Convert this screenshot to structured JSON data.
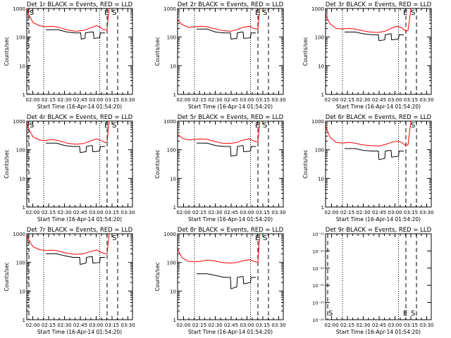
{
  "figure": {
    "x_axis_label": "Start Time (16-Apr-14 01:54:20)",
    "y_axis_label": "Counts/sec",
    "x_tick_labels": [
      "02:00",
      "02:15",
      "02:30",
      "02:45",
      "03:00",
      "03:15",
      "03:30"
    ],
    "y_tick_labels_linear": [
      "1",
      "10",
      "100",
      "1000"
    ],
    "marker_labels": {
      "E": "E",
      "S": "S"
    },
    "colors": {
      "events": "#000000",
      "lld": "#ff0000",
      "axes": "#000000",
      "background": "#ffffff"
    }
  },
  "chart_data": [
    {
      "type": "line",
      "title": "Det 1r BLACK = Events, RED = LLD",
      "xlabel": "Start Time (16-Apr-14 01:54:20)",
      "ylabel": "Counts/sec",
      "x_unit": "minutes after 01:54:20",
      "xlim": [
        0,
        100
      ],
      "ylim": [
        1,
        1000
      ],
      "y_scale": "log",
      "grid": false,
      "legend": "none",
      "dashed_lines_x": [
        2,
        76,
        86
      ],
      "dotted_lines_x": [
        16,
        69
      ],
      "markers": [
        {
          "label": "S",
          "x": 2
        },
        {
          "label": "E",
          "x": 76
        },
        {
          "label": "S",
          "x": 80
        }
      ],
      "series": [
        {
          "name": "RED = LLD",
          "color": "#ff0000",
          "x": [
            0,
            2,
            6,
            12,
            18,
            24,
            30,
            38,
            46,
            54,
            60,
            66,
            70,
            72,
            74,
            76,
            77,
            78,
            79
          ],
          "y": [
            1000,
            600,
            320,
            250,
            230,
            240,
            220,
            180,
            160,
            170,
            210,
            250,
            220,
            180,
            180,
            180,
            500,
            1000,
            1000
          ]
        },
        {
          "name": "BLACK = Events",
          "color": "#000000",
          "x": [
            18,
            30,
            38,
            46,
            51,
            51.5,
            55,
            55.5,
            60,
            63,
            63.5,
            69,
            69.5,
            74
          ],
          "y": [
            180,
            180,
            150,
            140,
            140,
            85,
            90,
            140,
            150,
            150,
            90,
            95,
            140,
            140
          ]
        }
      ]
    },
    {
      "type": "line",
      "title": "Det 2r BLACK = Events, RED = LLD",
      "xlabel": "Start Time (16-Apr-14 01:54:20)",
      "ylabel": "Counts/sec",
      "x_unit": "minutes after 01:54:20",
      "xlim": [
        0,
        100
      ],
      "ylim": [
        1,
        1000
      ],
      "y_scale": "log",
      "grid": false,
      "legend": "none",
      "dashed_lines_x": [
        76,
        86
      ],
      "dotted_lines_x": [
        16,
        69
      ],
      "markers": [
        {
          "label": "E",
          "x": 76
        },
        {
          "label": "S",
          "x": 80
        }
      ],
      "series": [
        {
          "name": "RED = LLD",
          "color": "#ff0000",
          "x": [
            0,
            4,
            10,
            16,
            22,
            28,
            34,
            42,
            50,
            56,
            62,
            68,
            72,
            76,
            77,
            78,
            79
          ],
          "y": [
            400,
            280,
            220,
            230,
            240,
            230,
            200,
            170,
            160,
            180,
            220,
            240,
            200,
            190,
            500,
            1000,
            1000
          ]
        },
        {
          "name": "BLACK = Events",
          "color": "#000000",
          "x": [
            18,
            28,
            36,
            44,
            50,
            50.5,
            56,
            56.5,
            61,
            62,
            62.5,
            69,
            69.5,
            74
          ],
          "y": [
            190,
            190,
            150,
            140,
            140,
            85,
            90,
            140,
            150,
            150,
            90,
            95,
            140,
            140
          ]
        }
      ]
    },
    {
      "type": "line",
      "title": "Det 3r BLACK = Events, RED = LLD",
      "xlabel": "Start Time (16-Apr-14 01:54:20)",
      "ylabel": "Counts/sec",
      "x_unit": "minutes after 01:54:20",
      "xlim": [
        0,
        100
      ],
      "ylim": [
        1,
        1000
      ],
      "y_scale": "log",
      "grid": false,
      "legend": "none",
      "dashed_lines_x": [
        76,
        86
      ],
      "dotted_lines_x": [
        16,
        69
      ],
      "markers": [
        {
          "label": "E",
          "x": 76
        },
        {
          "label": "S",
          "x": 80
        }
      ],
      "series": [
        {
          "name": "RED = LLD",
          "color": "#ff0000",
          "x": [
            0,
            4,
            10,
            16,
            22,
            28,
            34,
            42,
            50,
            56,
            62,
            68,
            72,
            76,
            78,
            80,
            81
          ],
          "y": [
            600,
            300,
            200,
            190,
            200,
            190,
            170,
            150,
            145,
            160,
            200,
            240,
            210,
            160,
            170,
            600,
            1000
          ]
        },
        {
          "name": "BLACK = Events",
          "color": "#000000",
          "x": [
            18,
            28,
            36,
            44,
            50,
            50.5,
            56,
            56.5,
            61,
            62,
            62.5,
            69,
            69.5,
            74
          ],
          "y": [
            150,
            150,
            130,
            120,
            120,
            75,
            80,
            120,
            130,
            130,
            80,
            85,
            120,
            120
          ]
        }
      ]
    },
    {
      "type": "line",
      "title": "Det 4r BLACK = Events, RED = LLD",
      "xlabel": "Start Time (16-Apr-14 01:54:20)",
      "ylabel": "Counts/sec",
      "x_unit": "minutes after 01:54:20",
      "xlim": [
        0,
        100
      ],
      "ylim": [
        1,
        1000
      ],
      "y_scale": "log",
      "grid": false,
      "legend": "none",
      "dashed_lines_x": [
        2,
        76,
        86
      ],
      "dotted_lines_x": [
        16,
        69
      ],
      "markers": [
        {
          "label": "S",
          "x": 2
        },
        {
          "label": "E",
          "x": 76
        },
        {
          "label": "S",
          "x": 80
        }
      ],
      "series": [
        {
          "name": "RED = LLD",
          "color": "#ff0000",
          "x": [
            0,
            2,
            6,
            12,
            18,
            24,
            30,
            38,
            46,
            54,
            60,
            66,
            70,
            74,
            76,
            77,
            78,
            79
          ],
          "y": [
            900,
            500,
            280,
            220,
            210,
            230,
            210,
            170,
            155,
            165,
            200,
            240,
            210,
            180,
            180,
            500,
            1000,
            1000
          ]
        },
        {
          "name": "BLACK = Events",
          "color": "#000000",
          "x": [
            18,
            28,
            36,
            44,
            50,
            50.5,
            56,
            56.5,
            61,
            62,
            62.5,
            69,
            69.5,
            74
          ],
          "y": [
            170,
            170,
            140,
            130,
            130,
            80,
            85,
            130,
            140,
            140,
            85,
            90,
            130,
            130
          ]
        }
      ]
    },
    {
      "type": "line",
      "title": "Det 5r BLACK = Events, RED = LLD",
      "xlabel": "Start Time (16-Apr-14 01:54:20)",
      "ylabel": "Counts/sec",
      "x_unit": "minutes after 01:54:20",
      "xlim": [
        0,
        100
      ],
      "ylim": [
        1,
        1000
      ],
      "y_scale": "log",
      "grid": false,
      "legend": "none",
      "dashed_lines_x": [
        76,
        86
      ],
      "dotted_lines_x": [
        16,
        69
      ],
      "markers": [
        {
          "label": "E",
          "x": 76
        },
        {
          "label": "S",
          "x": 80
        }
      ],
      "series": [
        {
          "name": "RED = LLD",
          "color": "#ff0000",
          "x": [
            0,
            4,
            10,
            16,
            22,
            28,
            34,
            42,
            50,
            56,
            62,
            68,
            72,
            76,
            77,
            78,
            79
          ],
          "y": [
            350,
            260,
            220,
            230,
            240,
            230,
            200,
            170,
            165,
            180,
            220,
            240,
            200,
            190,
            500,
            1000,
            1000
          ]
        },
        {
          "name": "BLACK = Events",
          "color": "#000000",
          "x": [
            18,
            28,
            36,
            44,
            50,
            50.5,
            56,
            56.5,
            61,
            62,
            62.5,
            69,
            69.5,
            74
          ],
          "y": [
            170,
            170,
            140,
            130,
            130,
            60,
            65,
            130,
            140,
            140,
            85,
            90,
            130,
            130
          ]
        }
      ]
    },
    {
      "type": "line",
      "title": "Det 6r BLACK = Events, RED = LLD",
      "xlabel": "Start Time (16-Apr-14 01:54:20)",
      "ylabel": "Counts/sec",
      "x_unit": "minutes after 01:54:20",
      "xlim": [
        0,
        100
      ],
      "ylim": [
        1,
        1000
      ],
      "y_scale": "log",
      "grid": false,
      "legend": "none",
      "dashed_lines_x": [
        76,
        86
      ],
      "dotted_lines_x": [
        16,
        69
      ],
      "markers": [
        {
          "label": "S",
          "x": 80
        }
      ],
      "series": [
        {
          "name": "RED = LLD",
          "color": "#ff0000",
          "x": [
            0,
            4,
            10,
            16,
            22,
            28,
            34,
            42,
            50,
            56,
            62,
            68,
            72,
            76,
            78,
            80,
            81
          ],
          "y": [
            700,
            280,
            180,
            170,
            180,
            170,
            150,
            140,
            135,
            150,
            180,
            200,
            180,
            140,
            150,
            600,
            1000
          ]
        },
        {
          "name": "BLACK = Events",
          "color": "#000000",
          "x": [
            18,
            28,
            36,
            44,
            50,
            50.5,
            56,
            56.5,
            61,
            62,
            62.5,
            69,
            69.5,
            74
          ],
          "y": [
            110,
            110,
            95,
            90,
            90,
            45,
            50,
            90,
            95,
            95,
            55,
            60,
            90,
            90
          ]
        }
      ]
    },
    {
      "type": "line",
      "title": "Det 7r BLACK = Events, RED = LLD",
      "xlabel": "Start Time (16-Apr-14 01:54:20)",
      "ylabel": "Counts/sec",
      "x_unit": "minutes after 01:54:20",
      "xlim": [
        0,
        100
      ],
      "ylim": [
        1,
        1000
      ],
      "y_scale": "log",
      "grid": false,
      "legend": "none",
      "dashed_lines_x": [
        2,
        76,
        86
      ],
      "dotted_lines_x": [
        16,
        69
      ],
      "markers": [
        {
          "label": "S",
          "x": 80
        }
      ],
      "series": [
        {
          "name": "RED = LLD",
          "color": "#ff0000",
          "x": [
            0,
            2,
            6,
            12,
            18,
            24,
            30,
            38,
            46,
            54,
            60,
            66,
            70,
            74,
            76,
            77,
            78,
            79
          ],
          "y": [
            900,
            600,
            350,
            280,
            260,
            270,
            250,
            210,
            190,
            200,
            240,
            270,
            230,
            200,
            200,
            500,
            1000,
            1000
          ]
        },
        {
          "name": "BLACK = Events",
          "color": "#000000",
          "x": [
            18,
            28,
            36,
            44,
            50,
            50.5,
            56,
            56.5,
            61,
            62,
            62.5,
            69,
            69.5,
            74
          ],
          "y": [
            200,
            200,
            170,
            150,
            150,
            85,
            95,
            150,
            160,
            160,
            95,
            100,
            150,
            150
          ]
        }
      ]
    },
    {
      "type": "line",
      "title": "Det 8r BLACK = Events, RED = LLD",
      "xlabel": "Start Time (16-Apr-14 01:54:20)",
      "ylabel": "Counts/sec",
      "x_unit": "minutes after 01:54:20",
      "xlim": [
        0,
        100
      ],
      "ylim": [
        1,
        1000
      ],
      "y_scale": "log",
      "grid": false,
      "legend": "none",
      "dashed_lines_x": [
        76,
        86
      ],
      "dotted_lines_x": [
        16,
        69
      ],
      "markers": [
        {
          "label": "E",
          "x": 76
        },
        {
          "label": "S",
          "x": 80
        }
      ],
      "series": [
        {
          "name": "RED = LLD",
          "color": "#ff0000",
          "x": [
            0,
            4,
            10,
            16,
            22,
            28,
            34,
            42,
            50,
            56,
            62,
            68,
            72,
            76,
            77,
            78,
            79
          ],
          "y": [
            300,
            150,
            110,
            105,
            110,
            120,
            115,
            100,
            95,
            100,
            115,
            125,
            110,
            100,
            400,
            1000,
            1000
          ]
        },
        {
          "name": "BLACK = Events",
          "color": "#000000",
          "x": [
            18,
            28,
            36,
            44,
            50,
            50.5,
            56,
            56.5,
            61,
            62,
            62.5,
            69,
            69.5,
            74
          ],
          "y": [
            40,
            40,
            35,
            30,
            30,
            12,
            14,
            30,
            32,
            32,
            18,
            20,
            30,
            30
          ]
        }
      ]
    },
    {
      "type": "line",
      "title": "Det 9r BLACK = Events, RED = LLD",
      "xlabel": "Start Time (16-Apr-14 01:54:20)",
      "ylabel": "",
      "x_unit": "minutes after 01:54:20",
      "xlim": [
        0,
        100
      ],
      "ylim": [
        1e-10,
        1e-09
      ],
      "y_scale": "log",
      "y_tick_labels": [
        "10⁻¹⁰",
        "10⁻¹⁰",
        "10⁻¹⁰",
        "10⁻¹⁰",
        "10⁻¹⁰",
        "10⁻¹⁰"
      ],
      "grid": false,
      "legend": "none",
      "dashed_lines_x": [
        2,
        76,
        86
      ],
      "dotted_lines_x": [
        16,
        69
      ],
      "markers": [
        {
          "label": "S",
          "x": 2
        },
        {
          "label": "E",
          "x": 76
        },
        {
          "label": "S",
          "x": 80
        }
      ],
      "series": []
    }
  ]
}
